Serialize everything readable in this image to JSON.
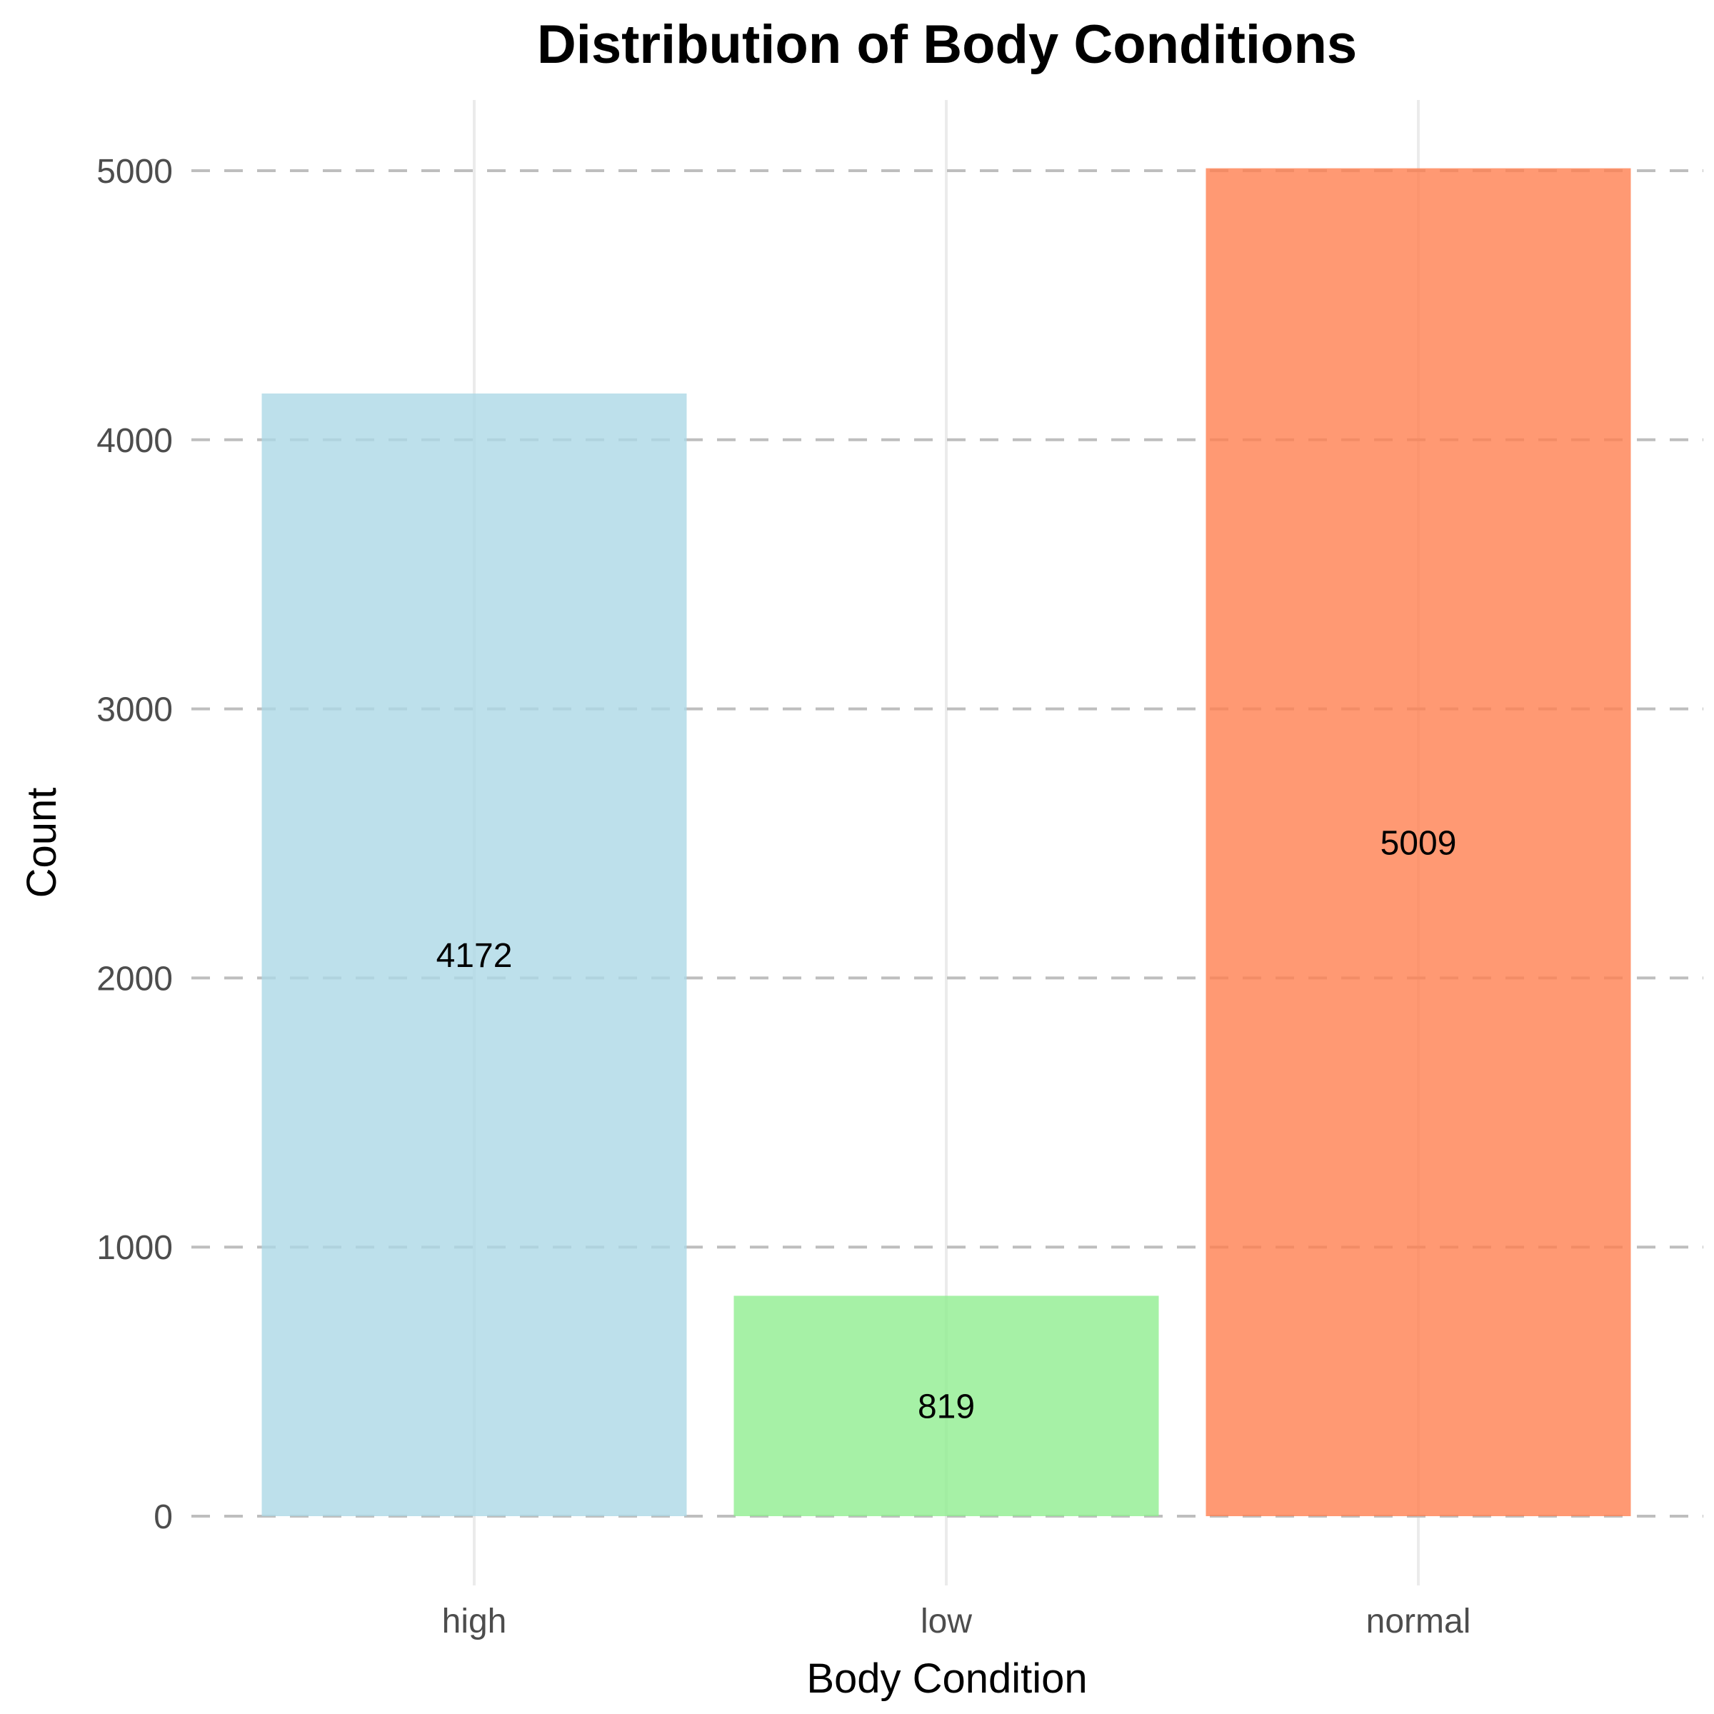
{
  "chart_data": {
    "type": "bar",
    "title": "Distribution of Body Conditions",
    "xlabel": "Body Condition",
    "ylabel": "Count",
    "categories": [
      "high",
      "low",
      "normal"
    ],
    "values": [
      4172,
      819,
      5009
    ],
    "data_labels": [
      "4172",
      "819",
      "5009"
    ],
    "colors": [
      "#add8e6",
      "#90ee90",
      "#ff7f50"
    ],
    "ylim": [
      0,
      5000
    ],
    "yticks": [
      0,
      1000,
      2000,
      3000,
      4000,
      5000
    ],
    "ytick_labels": [
      "0",
      "1000",
      "2000",
      "3000",
      "4000",
      "5000"
    ],
    "grid": true,
    "grid_color": "#bebebe",
    "vgrid_color": "#ebebeb"
  }
}
